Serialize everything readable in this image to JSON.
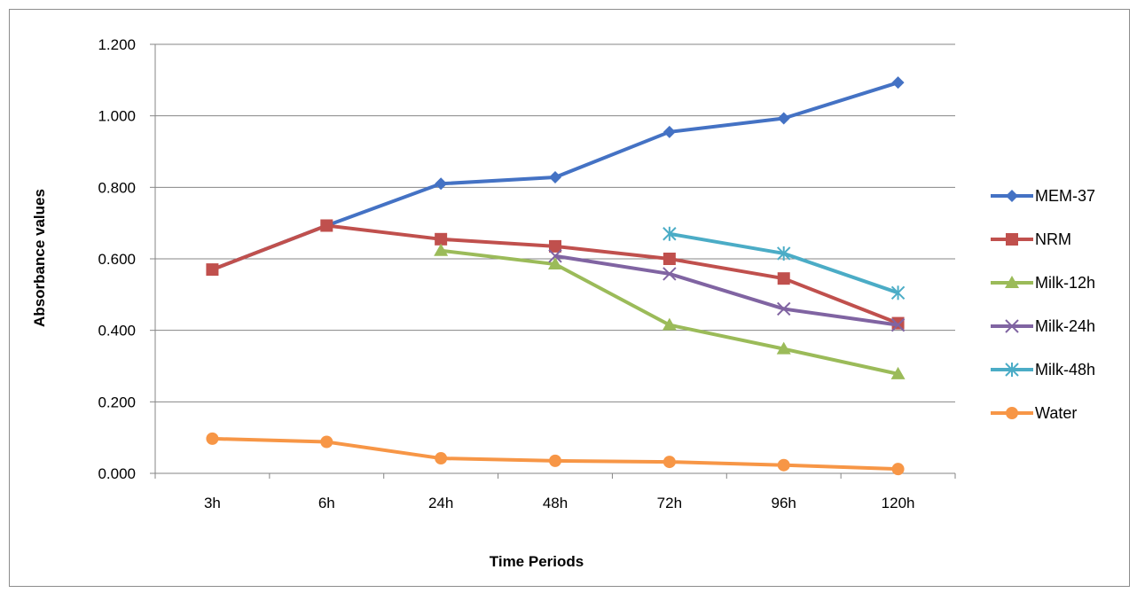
{
  "chart_data": {
    "type": "line",
    "title": "",
    "xlabel": "Time Periods",
    "ylabel": "Absorbance values",
    "categories": [
      "3h",
      "6h",
      "24h",
      "48h",
      "72h",
      "96h",
      "120h"
    ],
    "ylim": [
      0,
      1.2
    ],
    "yticks": [
      "0.000",
      "0.200",
      "0.400",
      "0.600",
      "0.800",
      "1.000",
      "1.200"
    ],
    "grid": true,
    "legend_position": "right",
    "series": [
      {
        "name": "MEM-37",
        "color": "#4472C4",
        "marker": "diamond",
        "values": [
          0.57,
          0.693,
          0.81,
          0.828,
          0.955,
          0.993,
          1.093
        ]
      },
      {
        "name": "NRM",
        "color": "#C0504D",
        "marker": "square",
        "values": [
          0.57,
          0.693,
          0.655,
          0.635,
          0.6,
          0.545,
          0.42
        ]
      },
      {
        "name": "Milk-12h",
        "color": "#9BBB59",
        "marker": "triangle",
        "values": [
          null,
          null,
          0.623,
          0.585,
          0.415,
          0.348,
          0.278
        ]
      },
      {
        "name": "Milk-24h",
        "color": "#8064A2",
        "marker": "x",
        "values": [
          null,
          null,
          null,
          0.608,
          0.558,
          0.46,
          0.415
        ]
      },
      {
        "name": "Milk-48h",
        "color": "#4BACC6",
        "marker": "star",
        "values": [
          null,
          null,
          null,
          null,
          0.67,
          0.615,
          0.505
        ]
      },
      {
        "name": "Water",
        "color": "#F79646",
        "marker": "circle",
        "values": [
          0.097,
          0.088,
          0.042,
          0.035,
          0.032,
          0.023,
          0.012
        ]
      }
    ]
  }
}
